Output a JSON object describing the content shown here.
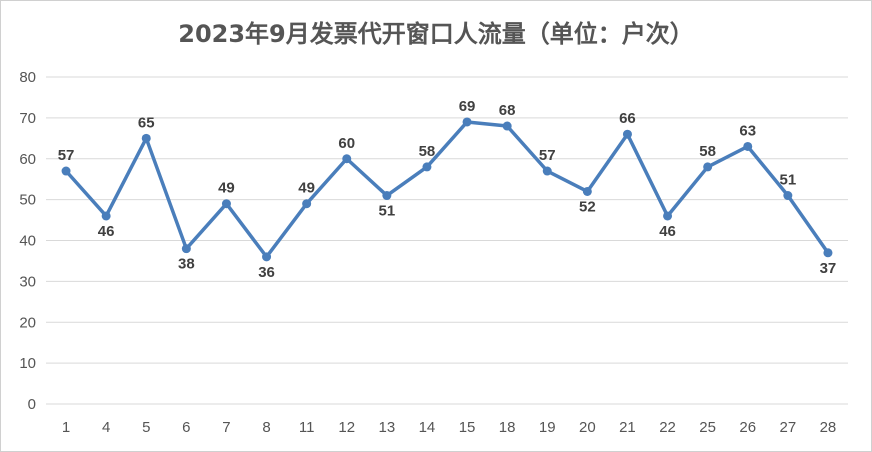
{
  "chart_data": {
    "type": "line",
    "title": "2023年9月发票代开窗口人流量（单位：户次）",
    "xlabel": "",
    "ylabel": "",
    "categories": [
      "1",
      "4",
      "5",
      "6",
      "7",
      "8",
      "11",
      "12",
      "13",
      "14",
      "15",
      "18",
      "19",
      "20",
      "21",
      "22",
      "25",
      "26",
      "27",
      "28"
    ],
    "values": [
      57,
      46,
      65,
      38,
      49,
      36,
      49,
      60,
      51,
      58,
      69,
      68,
      57,
      52,
      66,
      46,
      58,
      63,
      51,
      37
    ],
    "ylim": [
      0,
      80
    ],
    "yticks": [
      0,
      10,
      20,
      30,
      40,
      50,
      60,
      70,
      80
    ],
    "grid": true,
    "legend": "none",
    "data_labels": true,
    "line_color": "#4a7ebb",
    "grid_color": "#d9d9d9"
  }
}
